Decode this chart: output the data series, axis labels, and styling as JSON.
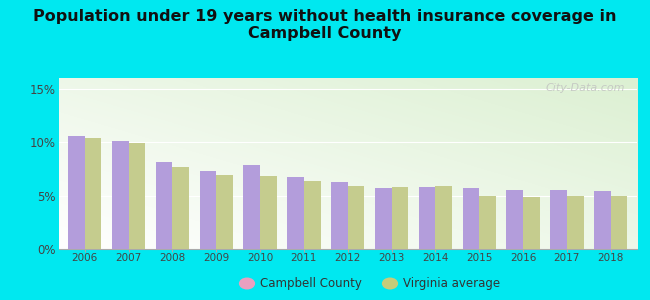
{
  "title": "Population under 19 years without health insurance coverage in\nCampbell County",
  "years": [
    2006,
    2007,
    2008,
    2009,
    2010,
    2011,
    2012,
    2013,
    2014,
    2015,
    2016,
    2017,
    2018
  ],
  "campbell": [
    10.6,
    10.1,
    8.1,
    7.3,
    7.9,
    6.7,
    6.3,
    5.7,
    5.8,
    5.7,
    5.5,
    5.5,
    5.4
  ],
  "virginia": [
    10.4,
    9.9,
    7.7,
    6.9,
    6.8,
    6.4,
    5.9,
    5.8,
    5.9,
    5.0,
    4.9,
    5.0,
    5.0
  ],
  "campbell_color": "#b39ddb",
  "virginia_color": "#c5cc8e",
  "background_outer": "#00e8f0",
  "title_fontsize": 11.5,
  "ylim": [
    0,
    16
  ],
  "yticks": [
    0,
    5,
    10,
    15
  ],
  "bar_width": 0.38,
  "legend_labels": [
    "Campbell County",
    "Virginia average"
  ],
  "legend_campbell_color": "#e8a0c0",
  "legend_virginia_color": "#c8cc7a"
}
